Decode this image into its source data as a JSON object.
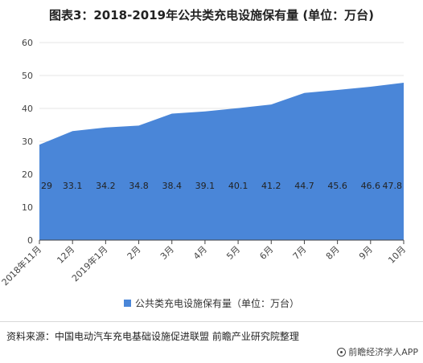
{
  "title": "图表3：2018-2019年公共类充电设施保有量 (单位：万台)",
  "source": "资料来源：中国电动汽车充电基础设施促进联盟 前瞻产业研究院整理",
  "brand": "前瞻经济学人APP",
  "colors": {
    "area": "#4a86d8",
    "grid": "#e6e6e6",
    "axis": "#444444"
  },
  "chart_data": {
    "type": "area",
    "categories": [
      "2018年11月",
      "12月",
      "2019年1月",
      "2月",
      "3月",
      "4月",
      "5月",
      "6月",
      "7月",
      "8月",
      "9月",
      "10月"
    ],
    "series": [
      {
        "name": "公共类充电设施保有量（单位：万台）",
        "values": [
          29,
          33.1,
          34.2,
          34.8,
          38.4,
          39.1,
          40.1,
          41.2,
          44.7,
          45.6,
          46.6,
          47.8
        ]
      }
    ],
    "value_labels": [
      "29",
      "33.1",
      "34.2",
      "34.8",
      "38.4",
      "39.1",
      "40.1",
      "41.2",
      "44.7",
      "45.6",
      "46.6",
      "47.8"
    ],
    "ylim": [
      0,
      60
    ],
    "yticks": [
      0,
      10,
      20,
      30,
      40,
      50,
      60
    ],
    "grid": true,
    "legend": "bottom"
  }
}
